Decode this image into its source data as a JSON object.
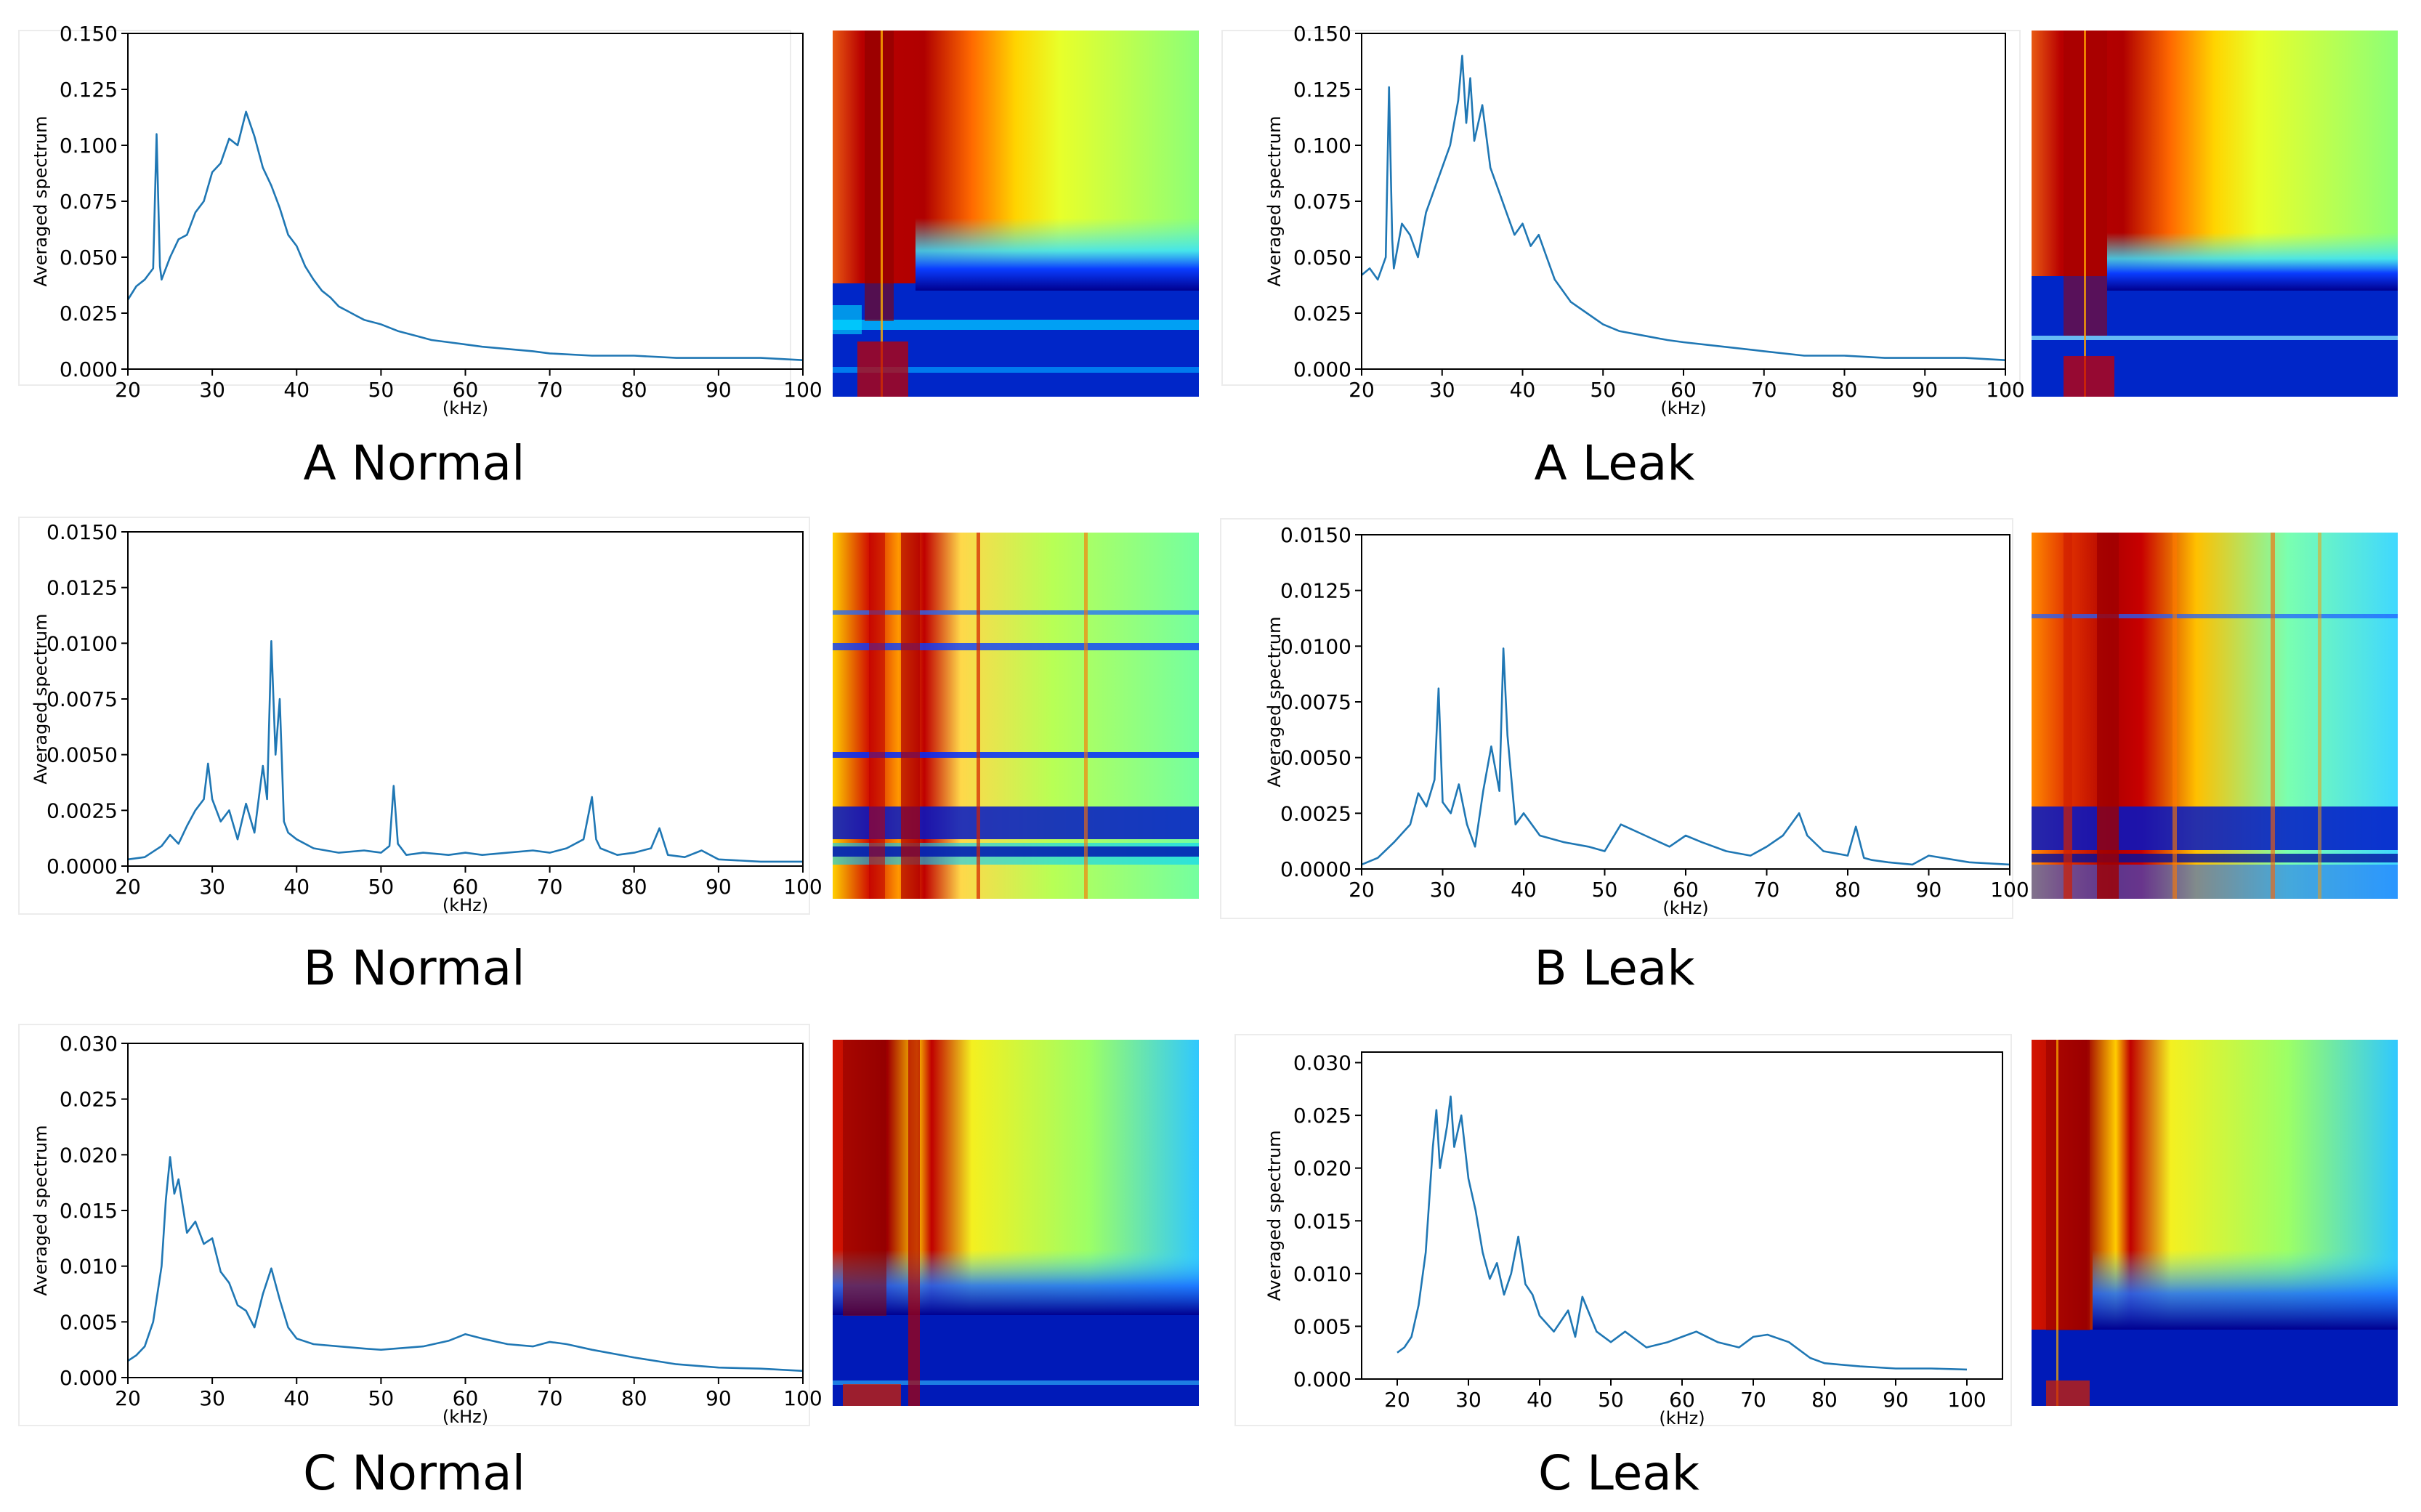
{
  "chart_data": [
    {
      "id": "A-normal",
      "caption": "A Normal",
      "type": "line",
      "xlabel": "(kHz)",
      "ylabel": "Averaged spectrum",
      "xlim": [
        20,
        100
      ],
      "ylim": [
        0,
        0.15
      ],
      "xticks": [
        20,
        30,
        40,
        50,
        60,
        70,
        80,
        90,
        100
      ],
      "yticks": [
        0,
        0.025,
        0.05,
        0.075,
        0.1,
        0.125,
        0.15
      ],
      "ytick_labels": [
        "0.000",
        "0.025",
        "0.050",
        "0.075",
        "0.100",
        "0.125",
        "0.150"
      ],
      "series": [
        {
          "color": "#1f77b4",
          "x": [
            20,
            21,
            22,
            23,
            23.4,
            23.8,
            24,
            25,
            26,
            27,
            28,
            29,
            30,
            31,
            32,
            33,
            34,
            35,
            36,
            37,
            38,
            39,
            40,
            41,
            42,
            43,
            44,
            45,
            46,
            47,
            48,
            50,
            52,
            54,
            56,
            58,
            60,
            62,
            65,
            68,
            70,
            75,
            80,
            85,
            90,
            95,
            100
          ],
          "y": [
            0.031,
            0.037,
            0.04,
            0.045,
            0.105,
            0.046,
            0.04,
            0.05,
            0.058,
            0.06,
            0.07,
            0.075,
            0.088,
            0.092,
            0.103,
            0.1,
            0.115,
            0.104,
            0.09,
            0.082,
            0.072,
            0.06,
            0.055,
            0.046,
            0.04,
            0.035,
            0.032,
            0.028,
            0.026,
            0.024,
            0.022,
            0.02,
            0.017,
            0.015,
            0.013,
            0.012,
            0.011,
            0.01,
            0.009,
            0.008,
            0.007,
            0.006,
            0.006,
            0.005,
            0.005,
            0.005,
            0.004
          ]
        }
      ]
    },
    {
      "id": "A-leak",
      "caption": "A Leak",
      "type": "line",
      "xlabel": "(kHz)",
      "ylabel": "Averaged spectrum",
      "xlim": [
        20,
        100
      ],
      "ylim": [
        0,
        0.15
      ],
      "xticks": [
        20,
        30,
        40,
        50,
        60,
        70,
        80,
        90,
        100
      ],
      "yticks": [
        0,
        0.025,
        0.05,
        0.075,
        0.1,
        0.125,
        0.15
      ],
      "ytick_labels": [
        "0.000",
        "0.025",
        "0.050",
        "0.075",
        "0.100",
        "0.125",
        "0.150"
      ],
      "series": [
        {
          "color": "#1f77b4",
          "x": [
            20,
            21,
            22,
            23,
            23.4,
            23.8,
            24,
            25,
            26,
            27,
            28,
            29,
            30,
            31,
            32,
            32.5,
            33,
            33.5,
            34,
            35,
            36,
            37,
            38,
            39,
            40,
            41,
            42,
            43,
            44,
            45,
            46,
            48,
            50,
            52,
            55,
            58,
            60,
            65,
            70,
            75,
            80,
            85,
            90,
            95,
            100
          ],
          "y": [
            0.042,
            0.045,
            0.04,
            0.05,
            0.126,
            0.058,
            0.045,
            0.065,
            0.06,
            0.05,
            0.07,
            0.08,
            0.09,
            0.1,
            0.12,
            0.14,
            0.11,
            0.13,
            0.102,
            0.118,
            0.09,
            0.08,
            0.07,
            0.06,
            0.065,
            0.055,
            0.06,
            0.05,
            0.04,
            0.035,
            0.03,
            0.025,
            0.02,
            0.017,
            0.015,
            0.013,
            0.012,
            0.01,
            0.008,
            0.006,
            0.006,
            0.005,
            0.005,
            0.005,
            0.004
          ]
        }
      ]
    },
    {
      "id": "B-normal",
      "caption": "B Normal",
      "type": "line",
      "xlabel": "(kHz)",
      "ylabel": "Averaged spectrum",
      "xlim": [
        20,
        100
      ],
      "ylim": [
        0,
        0.015
      ],
      "xticks": [
        20,
        30,
        40,
        50,
        60,
        70,
        80,
        90,
        100
      ],
      "yticks": [
        0,
        0.0025,
        0.005,
        0.0075,
        0.01,
        0.0125,
        0.015
      ],
      "ytick_labels": [
        "0.0000",
        "0.0025",
        "0.0050",
        "0.0075",
        "0.0100",
        "0.0125",
        "0.0150"
      ],
      "series": [
        {
          "color": "#1f77b4",
          "x": [
            20,
            22,
            24,
            25,
            26,
            27,
            28,
            29,
            29.5,
            30,
            31,
            32,
            33,
            34,
            35,
            36,
            36.5,
            37,
            37.5,
            38,
            38.5,
            39,
            40,
            42,
            45,
            48,
            50,
            51,
            51.5,
            52,
            53,
            55,
            58,
            60,
            62,
            65,
            68,
            70,
            72,
            74,
            75,
            75.5,
            76,
            78,
            80,
            82,
            83,
            84,
            86,
            88,
            90,
            95,
            100
          ],
          "y": [
            0.0003,
            0.0004,
            0.0009,
            0.0014,
            0.001,
            0.0018,
            0.0025,
            0.003,
            0.0046,
            0.003,
            0.002,
            0.0025,
            0.0012,
            0.0028,
            0.0015,
            0.0045,
            0.003,
            0.0101,
            0.005,
            0.0075,
            0.002,
            0.0015,
            0.0012,
            0.0008,
            0.0006,
            0.0007,
            0.0006,
            0.0009,
            0.0036,
            0.001,
            0.0005,
            0.0006,
            0.0005,
            0.0006,
            0.0005,
            0.0006,
            0.0007,
            0.0006,
            0.0008,
            0.0012,
            0.0031,
            0.0012,
            0.0008,
            0.0005,
            0.0006,
            0.0008,
            0.0017,
            0.0005,
            0.0004,
            0.0007,
            0.0003,
            0.0002,
            0.0002
          ]
        }
      ]
    },
    {
      "id": "B-leak",
      "caption": "B Leak",
      "type": "line",
      "xlabel": "(kHz)",
      "ylabel": "Averaged spectrum",
      "xlim": [
        20,
        100
      ],
      "ylim": [
        0,
        0.015
      ],
      "xticks": [
        20,
        30,
        40,
        50,
        60,
        70,
        80,
        90,
        100
      ],
      "yticks": [
        0,
        0.0025,
        0.005,
        0.0075,
        0.01,
        0.0125,
        0.015
      ],
      "ytick_labels": [
        "0.0000",
        "0.0025",
        "0.0050",
        "0.0075",
        "0.0100",
        "0.0125",
        "0.0150"
      ],
      "series": [
        {
          "color": "#1f77b4",
          "x": [
            20,
            22,
            24,
            26,
            27,
            28,
            29,
            29.5,
            30,
            31,
            32,
            33,
            34,
            35,
            36,
            37,
            37.5,
            38,
            39,
            40,
            42,
            45,
            48,
            50,
            52,
            55,
            58,
            60,
            62,
            65,
            68,
            70,
            72,
            74,
            75,
            77,
            80,
            81,
            82,
            83,
            85,
            88,
            90,
            95,
            100
          ],
          "y": [
            0.0002,
            0.0005,
            0.0012,
            0.002,
            0.0034,
            0.0028,
            0.004,
            0.0081,
            0.003,
            0.0025,
            0.0038,
            0.002,
            0.001,
            0.0035,
            0.0055,
            0.0035,
            0.0099,
            0.006,
            0.002,
            0.0025,
            0.0015,
            0.0012,
            0.001,
            0.0008,
            0.002,
            0.0015,
            0.001,
            0.0015,
            0.0012,
            0.0008,
            0.0006,
            0.001,
            0.0015,
            0.0025,
            0.0015,
            0.0008,
            0.0006,
            0.0019,
            0.0005,
            0.0004,
            0.0003,
            0.0002,
            0.0006,
            0.0003,
            0.0002
          ]
        }
      ]
    },
    {
      "id": "C-normal",
      "caption": "C Normal",
      "type": "line",
      "xlabel": "(kHz)",
      "ylabel": "Averaged spectrum",
      "xlim": [
        20,
        100
      ],
      "ylim": [
        0,
        0.03
      ],
      "xticks": [
        20,
        30,
        40,
        50,
        60,
        70,
        80,
        90,
        100
      ],
      "yticks": [
        0,
        0.005,
        0.01,
        0.015,
        0.02,
        0.025,
        0.03
      ],
      "ytick_labels": [
        "0.000",
        "0.005",
        "0.010",
        "0.015",
        "0.020",
        "0.025",
        "0.030"
      ],
      "series": [
        {
          "color": "#1f77b4",
          "x": [
            20,
            21,
            22,
            23,
            24,
            24.5,
            25,
            25.5,
            26,
            27,
            28,
            29,
            30,
            31,
            32,
            33,
            34,
            35,
            36,
            37,
            38,
            39,
            40,
            42,
            45,
            48,
            50,
            55,
            58,
            60,
            62,
            65,
            68,
            70,
            72,
            75,
            80,
            85,
            90,
            95,
            100
          ],
          "y": [
            0.0015,
            0.002,
            0.0028,
            0.005,
            0.01,
            0.016,
            0.0198,
            0.0165,
            0.0178,
            0.013,
            0.014,
            0.012,
            0.0125,
            0.0095,
            0.0085,
            0.0065,
            0.006,
            0.0045,
            0.0075,
            0.0098,
            0.007,
            0.0045,
            0.0035,
            0.003,
            0.0028,
            0.0026,
            0.0025,
            0.0028,
            0.0033,
            0.0039,
            0.0035,
            0.003,
            0.0028,
            0.0032,
            0.003,
            0.0025,
            0.0018,
            0.0012,
            0.0009,
            0.0008,
            0.0006
          ]
        }
      ]
    },
    {
      "id": "C-leak",
      "caption": "C Leak",
      "type": "line",
      "xlabel": "(kHz)",
      "ylabel": "Averaged spectrum",
      "xlim": [
        15,
        105
      ],
      "ylim": [
        0,
        0.031
      ],
      "xticks": [
        20,
        30,
        40,
        50,
        60,
        70,
        80,
        90,
        100
      ],
      "yticks": [
        0,
        0.005,
        0.01,
        0.015,
        0.02,
        0.025,
        0.03
      ],
      "ytick_labels": [
        "0.000",
        "0.005",
        "0.010",
        "0.015",
        "0.020",
        "0.025",
        "0.030"
      ],
      "series": [
        {
          "color": "#1f77b4",
          "x": [
            20,
            21,
            22,
            23,
            24,
            25,
            25.5,
            26,
            27,
            27.5,
            28,
            29,
            30,
            31,
            32,
            33,
            34,
            35,
            36,
            37,
            38,
            39,
            40,
            42,
            44,
            45,
            46,
            48,
            50,
            52,
            55,
            58,
            60,
            62,
            65,
            68,
            70,
            72,
            75,
            78,
            80,
            85,
            90,
            95,
            100
          ],
          "y": [
            0.0025,
            0.003,
            0.004,
            0.007,
            0.012,
            0.022,
            0.0255,
            0.02,
            0.024,
            0.0268,
            0.022,
            0.025,
            0.019,
            0.016,
            0.012,
            0.0095,
            0.011,
            0.008,
            0.01,
            0.0135,
            0.009,
            0.008,
            0.006,
            0.0045,
            0.0065,
            0.004,
            0.0078,
            0.0045,
            0.0035,
            0.0045,
            0.003,
            0.0035,
            0.004,
            0.0045,
            0.0035,
            0.003,
            0.004,
            0.0042,
            0.0035,
            0.002,
            0.0015,
            0.0012,
            0.001,
            0.001,
            0.0009
          ]
        }
      ]
    }
  ]
}
